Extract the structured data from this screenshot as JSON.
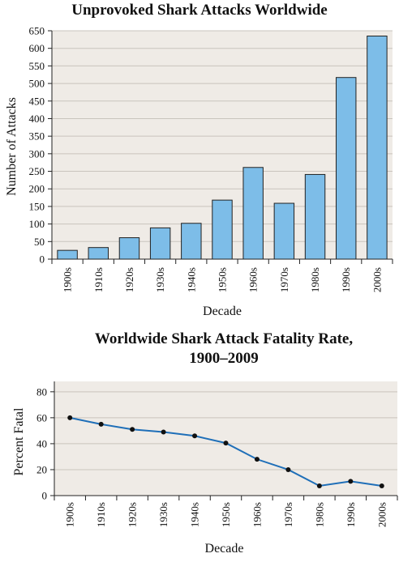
{
  "chart_data": [
    {
      "type": "bar",
      "title": "Unprovoked Shark Attacks Worldwide",
      "xlabel": "Decade",
      "ylabel": "Number of Attacks",
      "categories": [
        "1900s",
        "1910s",
        "1920s",
        "1930s",
        "1940s",
        "1950s",
        "1960s",
        "1970s",
        "1980s",
        "1990s",
        "2000s"
      ],
      "values": [
        25,
        33,
        61,
        89,
        102,
        168,
        261,
        159,
        241,
        517,
        635
      ],
      "ylim": [
        0,
        650
      ],
      "yticks": [
        0,
        50,
        100,
        150,
        200,
        250,
        300,
        350,
        400,
        450,
        500,
        550,
        600,
        650
      ],
      "grid": true,
      "colors": {
        "bar": "#7dbde8",
        "bar_edge": "#222222",
        "plot_bg": "#efebe6",
        "grid": "#c9c4bd"
      }
    },
    {
      "type": "line",
      "title": "Worldwide Shark Attack Fatality Rate,",
      "title_line2": "1900–2009",
      "xlabel": "Decade",
      "ylabel": "Percent Fatal",
      "categories": [
        "1900s",
        "1910s",
        "1920s",
        "1930s",
        "1940s",
        "1950s",
        "1960s",
        "1970s",
        "1980s",
        "1990s",
        "2000s"
      ],
      "values": [
        60,
        55,
        51,
        49,
        46,
        40.5,
        28,
        20,
        7.5,
        11,
        7.5
      ],
      "ylim": [
        0,
        80
      ],
      "yticks": [
        0,
        20,
        40,
        60,
        80
      ],
      "grid": true,
      "colors": {
        "line": "#1f6fb8",
        "marker": "#111111",
        "plot_bg": "#efebe6",
        "grid": "#c9c4bd"
      }
    }
  ]
}
